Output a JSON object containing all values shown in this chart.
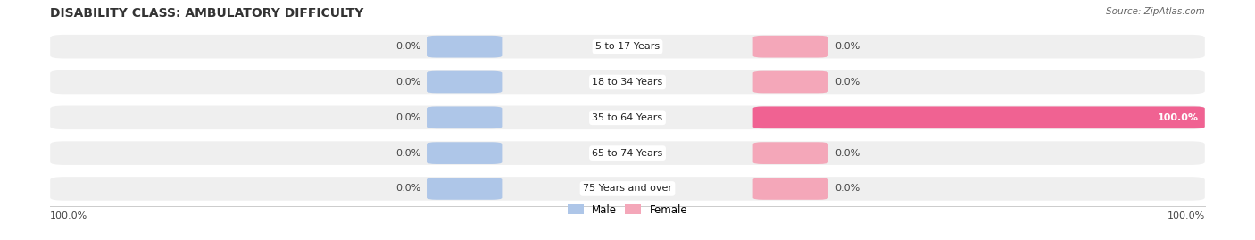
{
  "title": "DISABILITY CLASS: AMBULATORY DIFFICULTY",
  "source_text": "Source: ZipAtlas.com",
  "categories": [
    "5 to 17 Years",
    "18 to 34 Years",
    "35 to 64 Years",
    "65 to 74 Years",
    "75 Years and over"
  ],
  "male_values": [
    0.0,
    0.0,
    0.0,
    0.0,
    0.0
  ],
  "female_values": [
    0.0,
    0.0,
    100.0,
    0.0,
    0.0
  ],
  "male_color": "#aec6e8",
  "female_color": "#f4a7b9",
  "female_color_active": "#f06292",
  "row_bg_color": "#efefef",
  "label_left_text": [
    "0.0%",
    "0.0%",
    "0.0%",
    "0.0%",
    "0.0%"
  ],
  "label_right_text": [
    "0.0%",
    "0.0%",
    "100.0%",
    "0.0%",
    "0.0%"
  ],
  "bottom_left_label": "100.0%",
  "bottom_right_label": "100.0%",
  "title_fontsize": 10,
  "label_fontsize": 8,
  "category_fontsize": 8,
  "legend_fontsize": 8.5,
  "source_fontsize": 7.5
}
